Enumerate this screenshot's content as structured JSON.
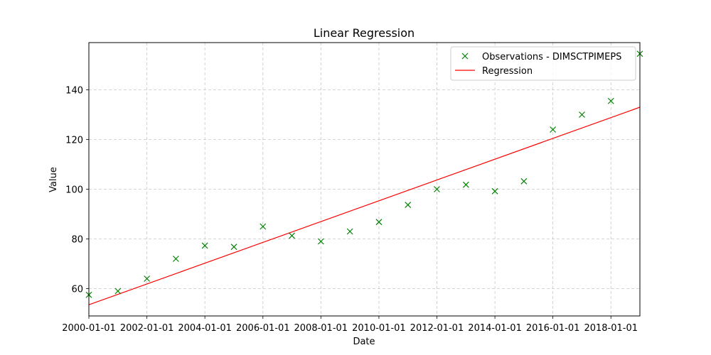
{
  "chart_data": {
    "type": "scatter",
    "title": "Linear Regression",
    "xlabel": "Date",
    "ylabel": "Value",
    "x_tick_labels": [
      "2000-01-01",
      "2002-01-01",
      "2004-01-01",
      "2006-01-01",
      "2008-01-01",
      "2010-01-01",
      "2012-01-01",
      "2014-01-01",
      "2016-01-01",
      "2018-01-01"
    ],
    "y_ticks": [
      60,
      80,
      100,
      120,
      140
    ],
    "xlim": [
      "2000-01-01",
      "2019-01-01"
    ],
    "ylim": [
      49,
      159
    ],
    "grid": true,
    "legend_position": "top-right",
    "series": [
      {
        "name": "Observations - DIMSCTPIMEPS",
        "kind": "scatter",
        "marker": "x",
        "color": "#008000",
        "x": [
          "2000-01-01",
          "2001-01-01",
          "2002-01-01",
          "2003-01-01",
          "2004-01-01",
          "2005-01-01",
          "2006-01-01",
          "2007-01-01",
          "2008-01-01",
          "2009-01-01",
          "2010-01-01",
          "2011-01-01",
          "2012-01-01",
          "2013-01-01",
          "2014-01-01",
          "2015-01-01",
          "2016-01-01",
          "2017-01-01",
          "2018-01-01",
          "2019-01-01"
        ],
        "y": [
          57.5,
          59.0,
          64.0,
          72.0,
          77.3,
          76.8,
          85.0,
          81.3,
          79.0,
          83.0,
          86.8,
          93.7,
          100.0,
          101.8,
          99.2,
          103.2,
          124.0,
          130.0,
          135.5,
          154.5
        ]
      },
      {
        "name": "Regression",
        "kind": "line",
        "color": "#ff0000",
        "x": [
          "2000-01-01",
          "2019-01-01"
        ],
        "y": [
          53.5,
          133.0
        ]
      }
    ]
  }
}
